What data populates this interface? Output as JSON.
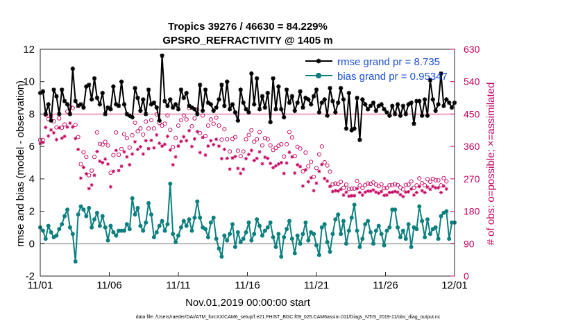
{
  "chart_data": {
    "type": "line",
    "title": "Tropics 39276 / 46630 = 84.229%",
    "subtitle": "GPSRO_REFRACTIVITY @ 1405 m",
    "xlabel": "Nov.01,2019 00:00:00 start",
    "ylabel": "rmse and bias (model - observation)",
    "ylabel_right": "# of obs: o=possible; ×=assimilated",
    "footer": "data file: /Users/raeder/DAI/ATM_forcXX/CAM6_setup/f.e21.FHIST_BGC.f09_025.CAM6assim.011/Diags_NTrS_2019-11/obs_diag_output.nc",
    "x_tick_labels": [
      "11/01",
      "11/06",
      "11/11",
      "11/16",
      "11/21",
      "11/26",
      "12/01"
    ],
    "x_tick_days": [
      0,
      5,
      10,
      15,
      20,
      25,
      30
    ],
    "xlim": [
      0,
      30
    ],
    "ylim": [
      -2,
      12
    ],
    "y_ticks": [
      -2,
      0,
      2,
      4,
      6,
      8,
      10,
      12
    ],
    "ylim_right": [
      0,
      630
    ],
    "y_ticks_right": [
      0,
      90,
      180,
      270,
      360,
      450,
      540,
      630
    ],
    "legend": [
      {
        "name": "rmse grand pr = 8.735",
        "color": "#000000",
        "marker": "asterisk"
      },
      {
        "name": "bias grand pr = 0.95347",
        "color": "#0c7f7f",
        "marker": "circle"
      }
    ],
    "legend_position": "top-right",
    "series": [
      {
        "name": "rmse",
        "color": "#000000",
        "values": [
          9.3,
          9.4,
          8.0,
          8.6,
          7.6,
          9.5,
          9.1,
          8.0,
          9.5,
          8.8,
          8.6,
          8.0,
          10.8,
          8.8,
          8.5,
          8.6,
          8.4,
          9.7,
          9.8,
          8.9,
          10.2,
          9.0,
          8.6,
          9.3,
          8.0,
          8.4,
          8.3,
          9.7,
          8.6,
          8.5,
          10.0,
          8.6,
          8.0,
          7.9,
          7.8,
          9.6,
          9.0,
          8.2,
          8.9,
          8.0,
          9.5,
          8.6,
          8.7,
          8.4,
          7.6,
          11.6,
          8.8,
          8.5,
          8.9,
          8.4,
          8.6,
          8.3,
          9.5,
          9.0,
          9.3,
          8.5,
          8.4,
          8.3,
          8.0,
          9.8,
          8.2,
          9.5,
          8.7,
          8.6,
          8.2,
          8.4,
          8.9,
          9.8,
          8.5,
          10.0,
          8.3,
          8.6,
          8.1,
          7.6,
          9.5,
          8.7,
          8.3,
          8.1,
          10.5,
          8.6,
          10.2,
          8.3,
          9.1,
          8.4,
          9.3,
          7.5,
          10.2,
          8.3,
          9.7,
          8.3,
          7.8,
          9.5,
          8.7,
          9.1,
          8.2,
          8.7,
          9.4,
          8.4,
          9.0,
          8.9,
          8.6,
          9.1,
          9.5,
          8.1,
          8.7,
          8.9,
          7.9,
          9.6,
          8.8,
          8.1,
          8.7,
          9.6,
          8.9,
          7.1,
          9.3,
          7.0,
          7.1,
          9.0,
          6.4,
          8.9,
          8.6,
          8.3,
          8.5,
          8.7,
          8.2,
          8.5,
          8.6,
          8.3,
          8.1,
          7.9,
          8.5,
          8.0,
          8.6,
          7.9,
          8.5,
          8.0,
          8.6,
          8.7,
          7.4,
          8.8,
          8.8,
          7.9,
          8.9,
          7.9,
          10.1,
          8.9,
          8.2,
          8.6,
          10.5,
          8.5,
          8.9,
          8.7,
          8.4,
          8.7
        ]
      },
      {
        "name": "bias",
        "color": "#0c7f7f",
        "values": [
          1.0,
          0.8,
          0.3,
          1.1,
          0.7,
          0.4,
          0.5,
          0.9,
          1.2,
          1.7,
          2.1,
          1.0,
          0.6,
          -1.1,
          1.8,
          2.3,
          2.1,
          1.7,
          2.2,
          1.0,
          1.5,
          1.9,
          1.1,
          1.7,
          1.0,
          0.2,
          1.1,
          0.7,
          0.5,
          0.8,
          0.8,
          0.8,
          1.2,
          0.9,
          2.8,
          1.8,
          2.2,
          1.1,
          0.8,
          1.3,
          2.5,
          1.8,
          0.4,
          0.7,
          1.1,
          1.4,
          0.8,
          1.2,
          3.7,
          0.6,
          0.1,
          0.5,
          1.0,
          1.4,
          1.1,
          1.5,
          0.8,
          1.6,
          2.6,
          1.6,
          1.0,
          0.9,
          0.4,
          1.3,
          1.6,
          0.3,
          -0.3,
          -0.8,
          0.5,
          0.2,
          0.6,
          1.2,
          -0.2,
          0.7,
          0.1,
          0.3,
          0.7,
          1.3,
          0.2,
          0.6,
          1.5,
          1.1,
          0.5,
          0.8,
          1.0,
          1.3,
          0.4,
          -0.2,
          0.6,
          -0.8,
          0.4,
          0.9,
          1.4,
          0.3,
          -0.6,
          0.5,
          0.0,
          0.6,
          1.3,
          0.2,
          0.7,
          0.6,
          -0.1,
          -0.7,
          1.0,
          1.2,
          0.1,
          -0.5,
          0.6,
          1.5,
          1.8,
          0.6,
          1.4,
          0.0,
          0.8,
          1.6,
          2.4,
          0.8,
          -0.2,
          0.3,
          1.2,
          1.4,
          0.7,
          0.0,
          0.8,
          1.1,
          0.6,
          -0.1,
          0.8,
          1.0,
          2.1,
          2.1,
          1.0,
          0.4,
          0.8,
          0.3,
          1.2,
          -0.2,
          1.0,
          0.9,
          2.3,
          1.4,
          0.4,
          1.5,
          0.6,
          0.9,
          1.0,
          0.3,
          1.7,
          1.9,
          2.0,
          0.3,
          1.3,
          1.3
        ]
      },
      {
        "name": "possible",
        "axis": "right",
        "color": "#c4005e",
        "marker": "circle",
        "values": [
          378,
          378,
          447,
          436,
          444,
          430,
          413,
          438,
          412,
          421,
          457,
          469,
          467,
          420,
          386,
          311,
          344,
          331,
          280,
          293,
          331,
          399,
          367,
          365,
          373,
          363,
          287,
          336,
          399,
          337,
          353,
          394,
          383,
          357,
          391,
          426,
          402,
          410,
          393,
          429,
          410,
          433,
          410,
          449,
          425,
          418,
          423,
          446,
          406,
          358,
          384,
          418,
          433,
          446,
          435,
          467,
          416,
          438,
          462,
          397,
          446,
          389,
          418,
          435,
          423,
          440,
          418,
          379,
          408,
          380,
          346,
          381,
          386,
          348,
          333,
          346,
          380,
          392,
          405,
          373,
          380,
          400,
          363,
          383,
          380,
          363,
          350,
          356,
          362,
          366,
          332,
          366,
          400,
          385,
          333,
          359,
          354,
          291,
          343,
          305,
          317,
          276,
          300,
          338,
          360,
          316,
          307,
          290,
          255,
          257,
          256,
          262,
          245,
          254,
          242,
          243,
          243,
          264,
          252,
          245,
          253,
          257,
          256,
          260,
          254,
          250,
          255,
          244,
          245,
          252,
          253,
          255,
          253,
          246,
          241,
          253,
          254,
          263,
          245,
          252,
          271,
          258,
          252,
          269,
          262,
          270,
          266,
          266,
          252,
          272,
          263
        ]
      },
      {
        "name": "assimilated",
        "axis": "right",
        "color": "#c4005e",
        "marker": "asterisk",
        "values": [
          368,
          371,
          413,
          389,
          406,
          398,
          379,
          412,
          383,
          388,
          414,
          425,
          414,
          382,
          352,
          272,
          302,
          284,
          243,
          253,
          280,
          346,
          319,
          315,
          325,
          311,
          248,
          291,
          349,
          293,
          305,
          345,
          331,
          309,
          339,
          373,
          352,
          359,
          339,
          376,
          354,
          377,
          356,
          392,
          369,
          361,
          366,
          388,
          350,
          309,
          331,
          361,
          374,
          387,
          376,
          404,
          360,
          381,
          401,
          343,
          385,
          336,
          361,
          376,
          365,
          380,
          361,
          326,
          352,
          327,
          297,
          328,
          332,
          299,
          285,
          297,
          326,
          338,
          349,
          321,
          327,
          345,
          312,
          330,
          327,
          313,
          301,
          306,
          311,
          315,
          285,
          314,
          344,
          331,
          286,
          309,
          304,
          250,
          295,
          262,
          273,
          237,
          258,
          291,
          310,
          271,
          264,
          249,
          235,
          237,
          236,
          241,
          225,
          233,
          222,
          223,
          223,
          243,
          232,
          225,
          233,
          236,
          236,
          239,
          233,
          230,
          235,
          224,
          225,
          232,
          233,
          235,
          233,
          226,
          221,
          233,
          234,
          242,
          225,
          232,
          249,
          237,
          232,
          247,
          241,
          249,
          245,
          245,
          232,
          250,
          242
        ]
      }
    ]
  }
}
